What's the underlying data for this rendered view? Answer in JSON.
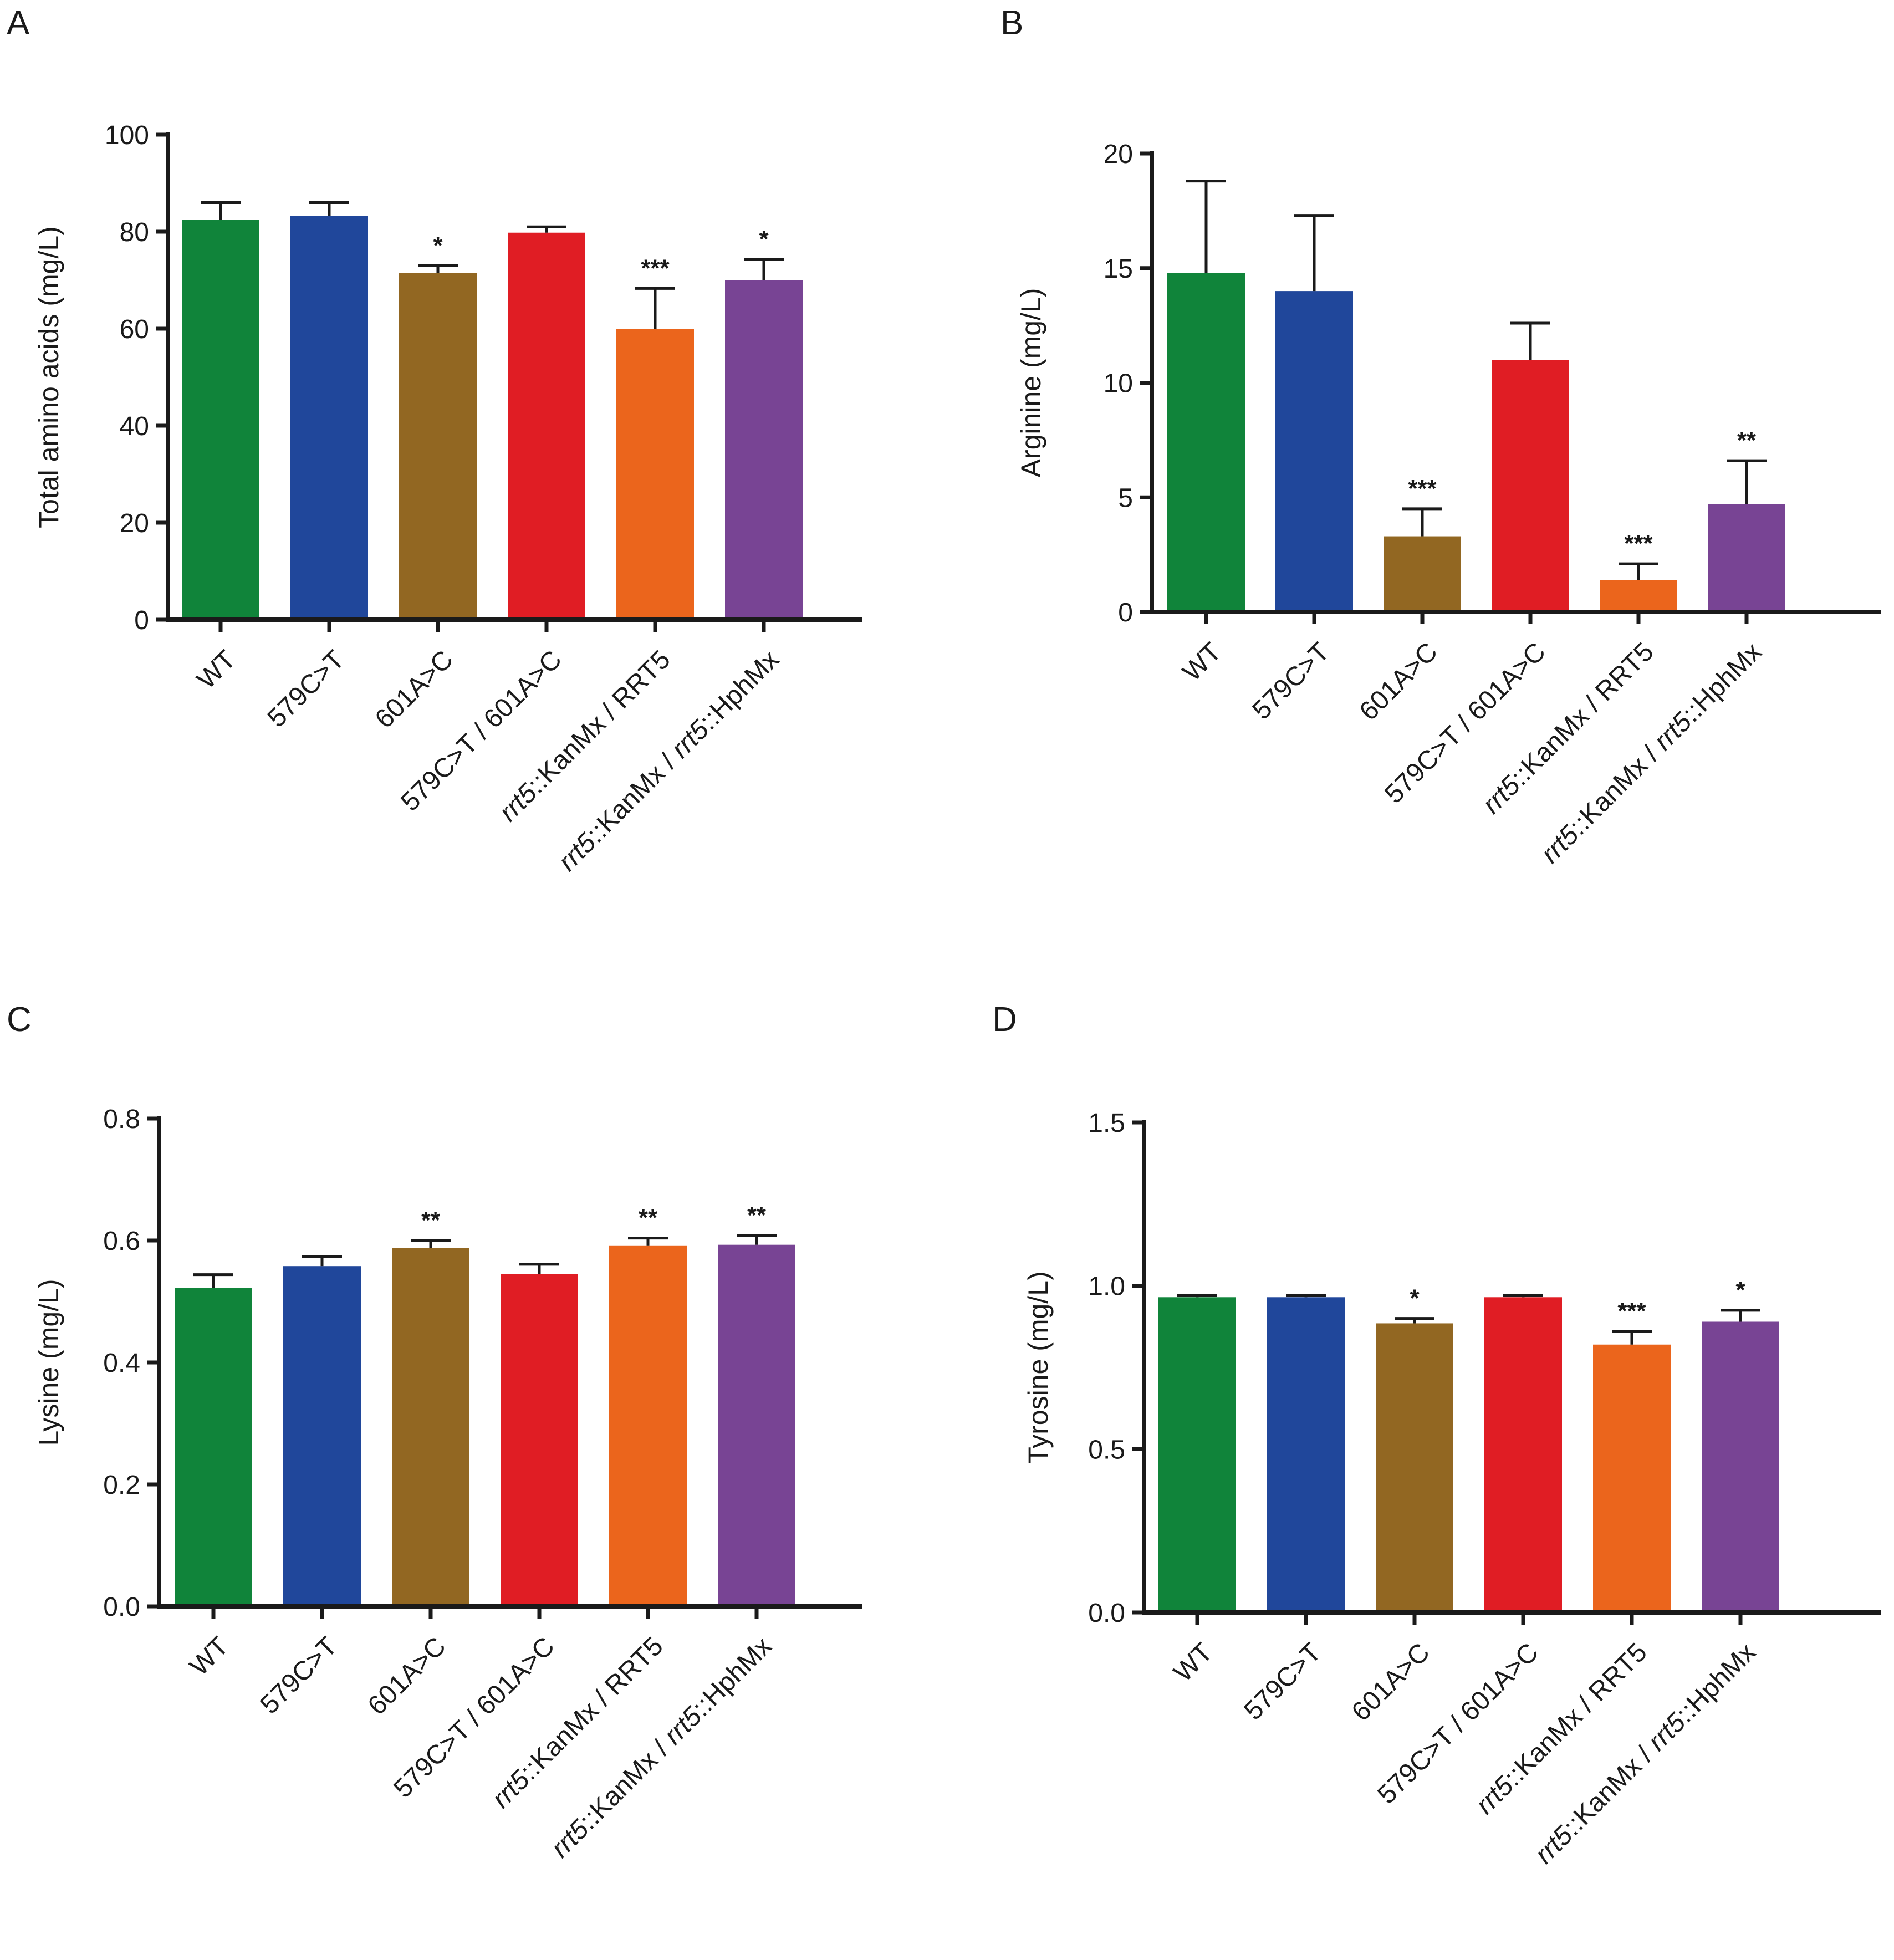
{
  "colors": {
    "WT": "#10843a",
    "579C>T": "#20479b",
    "601A>C": "#926722",
    "579C>T / 601A>C": "#e01d24",
    "rrt5::KanMx / RRT5": "#eb651c",
    "rrt5::KanMx / rrt5::HphMx": "#784494",
    "axis": "#1a1a1a"
  },
  "chart_data": [
    {
      "panel": "A",
      "type": "bar",
      "title": "",
      "ylabel": "Total amino acids (mg/L)",
      "xlabel": "",
      "ylim": [
        0,
        100
      ],
      "yticks": [
        "0",
        "20",
        "40",
        "60",
        "80",
        "100"
      ],
      "categories": [
        {
          "text": "WT",
          "italic": false
        },
        {
          "text": "579C>T",
          "italic": false
        },
        {
          "text": "601A>C",
          "italic": false
        },
        {
          "text": "579C>T / 601A>C",
          "italic": false
        },
        {
          "parts": [
            {
              "t": "rrt5",
              "i": true
            },
            {
              "t": "::KanMx / RRT5",
              "i": false
            }
          ]
        },
        {
          "parts": [
            {
              "t": "rrt5",
              "i": true
            },
            {
              "t": "::KanMx / ",
              "i": false
            },
            {
              "t": "rrt5",
              "i": true
            },
            {
              "t": "::HphMx",
              "i": false
            }
          ]
        }
      ],
      "values": [
        82.5,
        83.2,
        71.5,
        79.8,
        60,
        70
      ],
      "errors": [
        3.5,
        2.8,
        1.5,
        1.2,
        8.3,
        4.3
      ],
      "significance": [
        "",
        "",
        "*",
        "",
        "***",
        "*"
      ]
    },
    {
      "panel": "B",
      "type": "bar",
      "title": "",
      "ylabel": "Arginine (mg/L)",
      "xlabel": "",
      "ylim": [
        0,
        20
      ],
      "yticks": [
        "0",
        "5",
        "10",
        "15",
        "20"
      ],
      "categories": [
        {
          "text": "WT",
          "italic": false
        },
        {
          "text": "579C>T",
          "italic": false
        },
        {
          "text": "601A>C",
          "italic": false
        },
        {
          "text": "579C>T / 601A>C",
          "italic": false
        },
        {
          "parts": [
            {
              "t": "rrt5",
              "i": true
            },
            {
              "t": "::KanMx / RRT5",
              "i": false
            }
          ]
        },
        {
          "parts": [
            {
              "t": "rrt5",
              "i": true
            },
            {
              "t": "::KanMx / ",
              "i": false
            },
            {
              "t": "rrt5",
              "i": true
            },
            {
              "t": "::HphMx",
              "i": false
            }
          ]
        }
      ],
      "values": [
        14.8,
        14.0,
        3.3,
        11.0,
        1.4,
        4.7
      ],
      "errors": [
        4.0,
        3.3,
        1.2,
        1.6,
        0.7,
        1.9
      ],
      "significance": [
        "",
        "",
        "***",
        "",
        "***",
        "**"
      ]
    },
    {
      "panel": "C",
      "type": "bar",
      "title": "",
      "ylabel": "Lysine (mg/L)",
      "xlabel": "",
      "ylim": [
        0,
        0.8
      ],
      "yticks": [
        "0.0",
        "0.2",
        "0.4",
        "0.6",
        "0.8"
      ],
      "categories": [
        {
          "text": "WT",
          "italic": false
        },
        {
          "text": "579C>T",
          "italic": false
        },
        {
          "text": "601A>C",
          "italic": false
        },
        {
          "text": "579C>T / 601A>C",
          "italic": false
        },
        {
          "parts": [
            {
              "t": "rrt5",
              "i": true
            },
            {
              "t": "::KanMx / RRT5",
              "i": false
            }
          ]
        },
        {
          "parts": [
            {
              "t": "rrt5",
              "i": true
            },
            {
              "t": "::KanMx / ",
              "i": false
            },
            {
              "t": "rrt5",
              "i": true
            },
            {
              "t": "::HphMx",
              "i": false
            }
          ]
        }
      ],
      "values": [
        0.522,
        0.558,
        0.588,
        0.545,
        0.592,
        0.593
      ],
      "errors": [
        0.022,
        0.016,
        0.012,
        0.016,
        0.012,
        0.015
      ],
      "significance": [
        "",
        "",
        "**",
        "",
        "**",
        "**"
      ]
    },
    {
      "panel": "D",
      "type": "bar",
      "title": "",
      "ylabel": "Tyrosine (mg/L)",
      "xlabel": "",
      "ylim": [
        0,
        1.5
      ],
      "yticks": [
        "0.0",
        "0.5",
        "1.0",
        "1.5"
      ],
      "categories": [
        {
          "text": "WT",
          "italic": false
        },
        {
          "text": "579C>T",
          "italic": false
        },
        {
          "text": "601A>C",
          "italic": false
        },
        {
          "text": "579C>T / 601A>C",
          "italic": false
        },
        {
          "parts": [
            {
              "t": "rrt5",
              "i": true
            },
            {
              "t": "::KanMx / RRT5",
              "i": false
            }
          ]
        },
        {
          "parts": [
            {
              "t": "rrt5",
              "i": true
            },
            {
              "t": "::KanMx / ",
              "i": false
            },
            {
              "t": "rrt5",
              "i": true
            },
            {
              "t": "::HphMx",
              "i": false
            }
          ]
        }
      ],
      "values": [
        0.965,
        0.965,
        0.885,
        0.965,
        0.82,
        0.89
      ],
      "errors": [
        0.005,
        0.005,
        0.015,
        0.005,
        0.04,
        0.035
      ],
      "significance": [
        "",
        "",
        "*",
        "",
        "***",
        "*"
      ]
    }
  ]
}
